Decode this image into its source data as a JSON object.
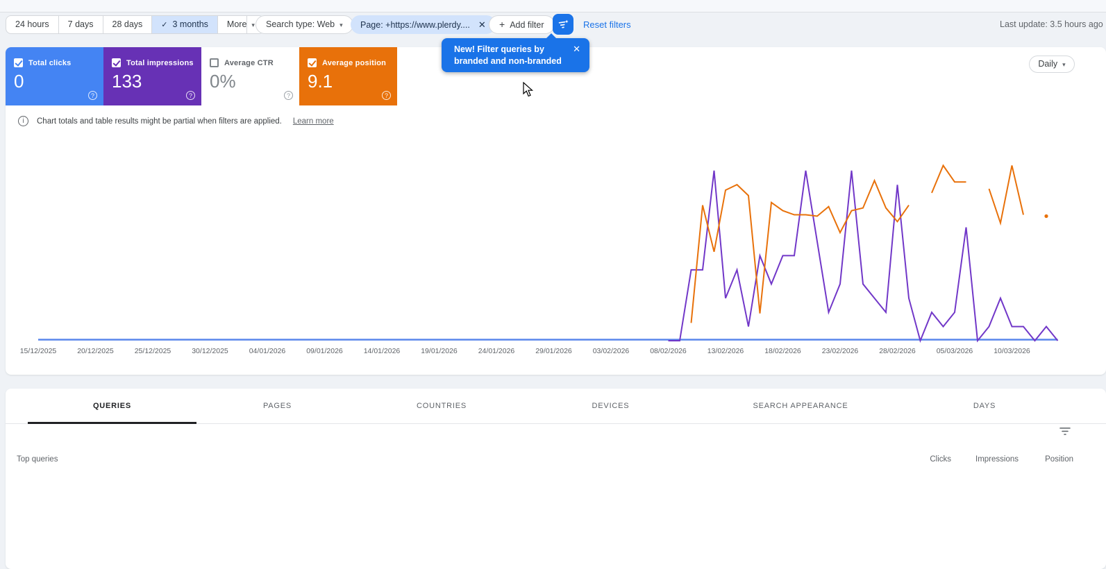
{
  "icons": {
    "caret_down": "▾",
    "close": "✕",
    "check": "✓",
    "plus": "+",
    "info": "i",
    "help": "?"
  },
  "header": {
    "last_update": "Last update: 3.5 hours ago"
  },
  "toolbar": {
    "date_ranges": [
      {
        "label": "24 hours",
        "selected": false
      },
      {
        "label": "7 days",
        "selected": false
      },
      {
        "label": "28 days",
        "selected": false
      },
      {
        "label": "3 months",
        "selected": true
      }
    ],
    "more_label": "More",
    "search_type_label": "Search type: Web",
    "page_filter_label": "Page: +https://www.plerdy....",
    "add_filter_label": "Add filter",
    "reset_filters_label": "Reset filters"
  },
  "promo_tooltip": {
    "text_line1": "New! Filter queries by",
    "text_line2": "branded and non-branded",
    "bg_color": "#1a73e8"
  },
  "metrics": [
    {
      "label": "Total clicks",
      "value": "0",
      "checked": true,
      "bg": "#4484f3",
      "fg": "#ffffff"
    },
    {
      "label": "Total impressions",
      "value": "133",
      "checked": true,
      "bg": "#6731b5",
      "fg": "#ffffff"
    },
    {
      "label": "Average CTR",
      "value": "0%",
      "checked": false,
      "bg": "#ffffff",
      "fg": "#80868b"
    },
    {
      "label": "Average position",
      "value": "9.1",
      "checked": true,
      "bg": "#e8710a",
      "fg": "#ffffff"
    }
  ],
  "granularity_control": {
    "value": "Daily"
  },
  "notice": {
    "text": "Chart totals and table results might be partial when filters are applied.",
    "link_label": "Learn more"
  },
  "chart_data": {
    "type": "line",
    "title": "",
    "grid": false,
    "legend": "none (metric cards act as legend)",
    "x_axis": {
      "start_date": "15/12/2025",
      "total_days": 90,
      "tick_every_days": 5,
      "tick_labels": [
        "15/12/2025",
        "20/12/2025",
        "25/12/2025",
        "30/12/2025",
        "04/01/2026",
        "09/01/2026",
        "14/01/2026",
        "19/01/2026",
        "24/01/2026",
        "29/01/2026",
        "03/02/2026",
        "08/02/2026",
        "13/02/2026",
        "18/02/2026",
        "23/02/2026",
        "28/02/2026",
        "05/03/2026",
        "10/03/2026"
      ]
    },
    "impressions_axis": {
      "min": 0,
      "plot_top_value": 14
    },
    "position_axis": {
      "inverted": true,
      "plot_top_value": 2.6,
      "plot_bottom_value": 17.1
    },
    "series": [
      {
        "name": "Total clicks",
        "axis": "clicks",
        "color": "#5a86ec",
        "flat": {
          "value": 0,
          "from_day": 0,
          "to_day": 89
        }
      },
      {
        "name": "Total impressions",
        "axis": "impressions",
        "color": "#7137c8",
        "start_day": 55,
        "start_date": "08/02/2026",
        "cadence": "daily",
        "values": [
          0,
          0,
          5,
          5,
          12,
          3,
          5,
          1,
          6,
          4,
          6,
          6,
          12,
          7,
          2,
          4,
          12,
          4,
          3,
          2,
          11,
          3,
          0,
          2,
          1,
          2,
          8,
          0,
          1,
          3,
          1,
          1,
          0,
          1,
          0
        ]
      },
      {
        "name": "Average position",
        "axis": "position",
        "color": "#e8710a",
        "start_day": 57,
        "start_date": "10/02/2026",
        "cadence": "daily",
        "values": [
          15.8,
          7.2,
          10.6,
          6.1,
          5.7,
          6.5,
          15.1,
          7.0,
          7.6,
          7.9,
          7.9,
          8.0,
          7.3,
          9.2,
          7.6,
          7.4,
          5.4,
          7.4,
          8.4,
          7.2,
          null,
          6.3,
          4.3,
          5.5,
          5.5,
          null,
          6.0,
          8.5,
          4.3,
          7.9,
          null,
          8.0
        ]
      }
    ]
  },
  "tabs": {
    "items": [
      "QUERIES",
      "PAGES",
      "COUNTRIES",
      "DEVICES",
      "SEARCH APPEARANCE",
      "DAYS"
    ],
    "active_index": 0
  },
  "table": {
    "row_header_label": "Top queries",
    "metric_columns": [
      "Clicks",
      "Impressions",
      "Position"
    ],
    "rows": []
  }
}
